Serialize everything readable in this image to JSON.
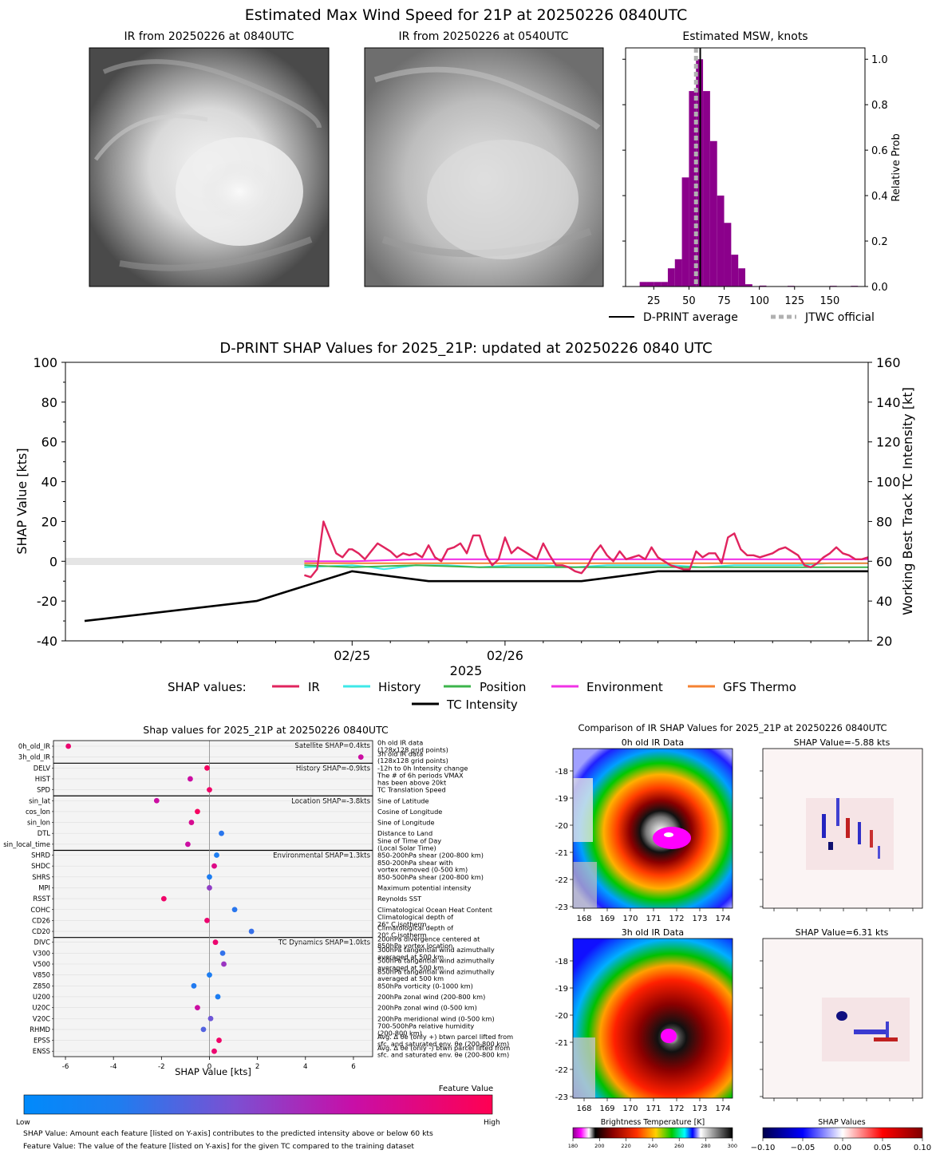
{
  "main_title": "Estimated Max Wind Speed for 21P at 20250226 0840UTC",
  "panel_ir_now_title": "IR from 20250226 at 0840UTC",
  "panel_ir_prev_title": "IR from 20250226 at 0540UTC",
  "colors": {
    "purple": "#8b008b",
    "ir": "#e0245e",
    "history": "#3ee8e8",
    "position": "#3cb44b",
    "environment": "#f032e6",
    "gfs": "#f58231",
    "grey": "#c8c8c8"
  },
  "chart_data": [
    {
      "type": "bar",
      "title": "Estimated MSW, knots",
      "xlabel": "",
      "ylabel": "Relative Prob",
      "xlim": [
        5,
        175
      ],
      "ylim": [
        0,
        1.05
      ],
      "xticks": [
        "25",
        "50",
        "75",
        "100",
        "125",
        "150"
      ],
      "yticks": [
        "0.0",
        "0.2",
        "0.4",
        "0.6",
        "0.8",
        "1.0"
      ],
      "bin_width": 5,
      "bin_starts": [
        15,
        20,
        25,
        30,
        35,
        40,
        45,
        50,
        55,
        60,
        65,
        70,
        75,
        80,
        85,
        90,
        100,
        120,
        150,
        165
      ],
      "values": [
        0.02,
        0.02,
        0.02,
        0.02,
        0.08,
        0.12,
        0.48,
        0.86,
        1.0,
        0.86,
        0.64,
        0.4,
        0.28,
        0.14,
        0.08,
        0.01,
        0.004,
        0.003,
        0.003,
        0.003
      ],
      "dprint_average": 58,
      "jtwc_official": 55,
      "legend": [
        "D-PRINT average",
        "JTWC official"
      ]
    },
    {
      "type": "line",
      "title": "D-PRINT SHAP Values for 2025_21P: updated at 20250226 0840 UTC",
      "xlabel": "2025",
      "ylabel": "SHAP Value [kts]",
      "y2label": "Working Best Track TC Intensity [kt]",
      "ylim": [
        -40,
        100
      ],
      "y2lim": [
        20,
        160
      ],
      "yticks": [
        "-40",
        "-20",
        "0",
        "20",
        "40",
        "60",
        "80",
        "100"
      ],
      "y2ticks": [
        "20",
        "40",
        "60",
        "80",
        "100",
        "120",
        "140",
        "160"
      ],
      "xlim_hours": [
        -90,
        162
      ],
      "xtick_labels": [
        "02/25",
        "02/26"
      ],
      "legend_prefix": "SHAP values:",
      "series": [
        {
          "name": "IR",
          "x_hours": [
            -15,
            -13,
            -11,
            -9,
            -7,
            -5,
            -3,
            -1,
            0,
            2,
            4,
            6,
            8,
            10,
            12,
            14,
            16,
            18,
            20,
            22,
            24,
            26,
            28,
            30,
            32,
            34,
            36,
            38,
            40,
            42,
            44,
            46,
            48,
            50,
            52,
            54,
            56,
            58,
            60,
            62,
            64,
            66,
            68,
            70,
            72,
            74,
            76,
            78,
            80,
            82,
            84,
            86,
            88,
            90,
            92,
            94,
            96,
            98,
            100,
            102,
            104,
            106,
            108,
            110,
            112,
            114,
            116,
            118,
            120,
            122,
            124,
            126,
            128,
            130,
            132,
            134,
            136,
            138,
            140,
            142,
            144,
            146,
            148,
            150,
            152,
            154,
            156,
            158,
            160,
            162
          ],
          "values": [
            -7,
            -8,
            -4,
            20,
            12,
            4,
            2,
            6,
            6,
            4,
            1,
            5,
            9,
            7,
            5,
            2,
            4,
            3,
            4,
            2,
            8,
            2,
            0,
            6,
            7,
            9,
            4,
            13,
            13,
            3,
            -2,
            1,
            12,
            4,
            7,
            5,
            3,
            1,
            9,
            3,
            -2,
            -2,
            -3,
            -5,
            -6,
            -2,
            4,
            8,
            3,
            0,
            5,
            1,
            2,
            3,
            1,
            7,
            2,
            0,
            -2,
            -3,
            -4,
            -4,
            5,
            2,
            4,
            4,
            -1,
            12,
            14,
            6,
            3,
            3,
            2,
            3,
            4,
            6,
            7,
            5,
            3,
            -2,
            -3,
            -1,
            2,
            4,
            7,
            4,
            3,
            1,
            1,
            2
          ]
        },
        {
          "name": "History",
          "x_hours": [
            -15,
            0,
            6,
            10,
            20,
            30,
            40,
            50,
            60,
            70,
            80,
            90,
            100,
            110,
            120,
            130,
            140,
            150,
            162
          ],
          "values": [
            -3,
            -2,
            -3,
            -4,
            -2,
            -2,
            -3,
            -2,
            -2,
            -3,
            -2,
            -2,
            -2,
            -3,
            -2,
            -2,
            -2,
            -1,
            -1
          ]
        },
        {
          "name": "Position",
          "x_hours": [
            -15,
            0,
            20,
            40,
            60,
            80,
            100,
            120,
            140,
            162
          ],
          "values": [
            -2,
            -3,
            -2,
            -3,
            -3,
            -3,
            -3,
            -3,
            -3,
            -3
          ]
        },
        {
          "name": "Environment",
          "x_hours": [
            -15,
            0,
            20,
            40,
            60,
            80,
            100,
            120,
            140,
            162
          ],
          "values": [
            0,
            0,
            1,
            1,
            1,
            1,
            1,
            1,
            1,
            1
          ]
        },
        {
          "name": "GFS Thermo",
          "x_hours": [
            -15,
            0,
            20,
            40,
            60,
            80,
            100,
            120,
            140,
            162
          ],
          "values": [
            -1,
            -1,
            -1,
            -1,
            -1,
            -1,
            -1,
            -1,
            -1,
            -1
          ]
        },
        {
          "name": "TC Intensity",
          "x_hours": [
            -84,
            -30,
            0,
            24,
            48,
            72,
            96,
            120,
            144,
            162
          ],
          "values": [
            30,
            40,
            55,
            50,
            50,
            50,
            55,
            55,
            55,
            55
          ]
        }
      ]
    },
    {
      "type": "scatter",
      "title": "Shap values for 2025_21P at 20250226 0840UTC",
      "xlabel": "SHAP Value [kts]",
      "xlim": [
        -6.5,
        6.8
      ],
      "xticks": [
        "-6",
        "-4",
        "-2",
        "0",
        "2",
        "4",
        "6"
      ],
      "features": [
        {
          "name": "0h_old_IR",
          "desc": "0h old IR data\n(128x128 grid points)",
          "shap": -5.88,
          "fv": 0.9
        },
        {
          "name": "3h_old_IR",
          "desc": "3h old IR data\n(128x128 grid points)",
          "shap": 6.31,
          "fv": 0.72
        },
        {
          "name": "DELV",
          "desc": "-12h to 0h Intensity change",
          "shap": -0.1,
          "fv": 0.95
        },
        {
          "name": "HIST",
          "desc": "The # of 6h periods VMAX\nhas been above 20kt",
          "shap": -0.8,
          "fv": 0.72
        },
        {
          "name": "SPD",
          "desc": "TC Translation Speed",
          "shap": 0.0,
          "fv": 0.92
        },
        {
          "name": "sin_lat",
          "desc": "Sine of Latitude",
          "shap": -2.2,
          "fv": 0.72
        },
        {
          "name": "cos_lon",
          "desc": "Cosine of Longitude",
          "shap": -0.5,
          "fv": 0.95
        },
        {
          "name": "sin_lon",
          "desc": "Sine of Longitude",
          "shap": -0.75,
          "fv": 0.78
        },
        {
          "name": "DTL",
          "desc": "Distance to Land",
          "shap": 0.5,
          "fv": 0.15
        },
        {
          "name": "sin_local_time",
          "desc": "Sine of Time of Day\n(Local Solar Time)",
          "shap": -0.9,
          "fv": 0.72
        },
        {
          "name": "SHRD",
          "desc": "850-200hPa shear (200-800 km)",
          "shap": 0.3,
          "fv": 0.1
        },
        {
          "name": "SHDC",
          "desc": "850-200hPa shear with\nvortex removed (0-500 km)",
          "shap": 0.2,
          "fv": 0.82
        },
        {
          "name": "SHRS",
          "desc": "850-500hPa shear (200-800 km)",
          "shap": 0.0,
          "fv": 0.1
        },
        {
          "name": "MPI",
          "desc": "Maximum potential intensity",
          "shap": 0.0,
          "fv": 0.52
        },
        {
          "name": "RSST",
          "desc": "Reynolds SST",
          "shap": -1.9,
          "fv": 0.92
        },
        {
          "name": "COHC",
          "desc": "Climatological Ocean Heat Content",
          "shap": 1.05,
          "fv": 0.15
        },
        {
          "name": "CD26",
          "desc": "Climatological depth of\n26° C isotherm",
          "shap": -0.1,
          "fv": 0.9
        },
        {
          "name": "CD20",
          "desc": "Climatological depth of\n20° C isotherm",
          "shap": 1.75,
          "fv": 0.2
        },
        {
          "name": "DIVC",
          "desc": "200hPa divergence centered at\n850hPa vortex location",
          "shap": 0.25,
          "fv": 0.9
        },
        {
          "name": "V300",
          "desc": "300hPa tangential wind azimuthally\naveraged at 500 km",
          "shap": 0.55,
          "fv": 0.18
        },
        {
          "name": "V500",
          "desc": "500hPa tangential wind azimuthally\naveraged at 500 km",
          "shap": 0.6,
          "fv": 0.55
        },
        {
          "name": "V850",
          "desc": "850hPa tangential wind azimuthally\naveraged at 500 km",
          "shap": 0.0,
          "fv": 0.1
        },
        {
          "name": "Z850",
          "desc": "850hPa vorticity (0-1000 km)",
          "shap": -0.65,
          "fv": 0.12
        },
        {
          "name": "U200",
          "desc": "200hPa zonal wind (200-800 km)",
          "shap": 0.35,
          "fv": 0.1
        },
        {
          "name": "U20C",
          "desc": "200hPa zonal wind (0-500 km)",
          "shap": -0.5,
          "fv": 0.72
        },
        {
          "name": "V20C",
          "desc": "200hPa meridional wind (0-500 km)",
          "shap": 0.05,
          "fv": 0.4
        },
        {
          "name": "RHMD",
          "desc": "700-500hPa relative humidity\n(200-800 km)",
          "shap": -0.25,
          "fv": 0.3
        },
        {
          "name": "EPSS",
          "desc": "Avg. Δ θe (only +) btwn parcel lifted from\nsfc. and saturated env. θe (200-800 km)",
          "shap": 0.4,
          "fv": 0.92
        },
        {
          "name": "ENSS",
          "desc": "Avg. Δ θe (only -) btwn parcel lifted from\nsfc. and saturated env. θe (200-800 km)",
          "shap": 0.2,
          "fv": 0.9
        }
      ],
      "groups": [
        {
          "label": "Satellite SHAP=0.4kts",
          "from": 0,
          "to": 1
        },
        {
          "label": "History SHAP=-0.9kts",
          "from": 2,
          "to": 4
        },
        {
          "label": "Location SHAP=-3.8kts",
          "from": 5,
          "to": 9
        },
        {
          "label": "Environmental SHAP=1.3kts",
          "from": 10,
          "to": 17
        },
        {
          "label": "TC Dynamics SHAP=1.0kts",
          "from": 18,
          "to": 28
        }
      ],
      "colorbar": {
        "title": "Feature Value",
        "low": "Low",
        "high": "High"
      }
    }
  ],
  "footnote1": "SHAP Value: Amount each feature [listed on Y-axis] contributes to the predicted intensity above or below 60 kts",
  "footnote2": "Feature Value: The value of the feature [listed on Y-axis] for the given TC compared to the training dataset",
  "comparison": {
    "title": "Comparison of IR SHAP Values for 2025_21P at 20250226 0840UTC",
    "ir0_title": "0h old IR Data",
    "shap0_title": "SHAP Value=-5.88 kts",
    "ir3_title": "3h old IR Data",
    "shap3_title": "SHAP Value=6.31 kts",
    "lon_ticks": [
      "168",
      "169",
      "170",
      "171",
      "172",
      "173",
      "174"
    ],
    "lat_ticks": [
      "-18",
      "-19",
      "-20",
      "-21",
      "-22",
      "-23"
    ],
    "bt_label": "Brightness Temperature [K]",
    "bt_ticks": [
      "180",
      "200",
      "220",
      "240",
      "260",
      "280",
      "300"
    ],
    "shap_label": "SHAP Values",
    "shap_ticks": [
      "−0.10",
      "−0.05",
      "0.00",
      "0.05",
      "0.10"
    ]
  }
}
